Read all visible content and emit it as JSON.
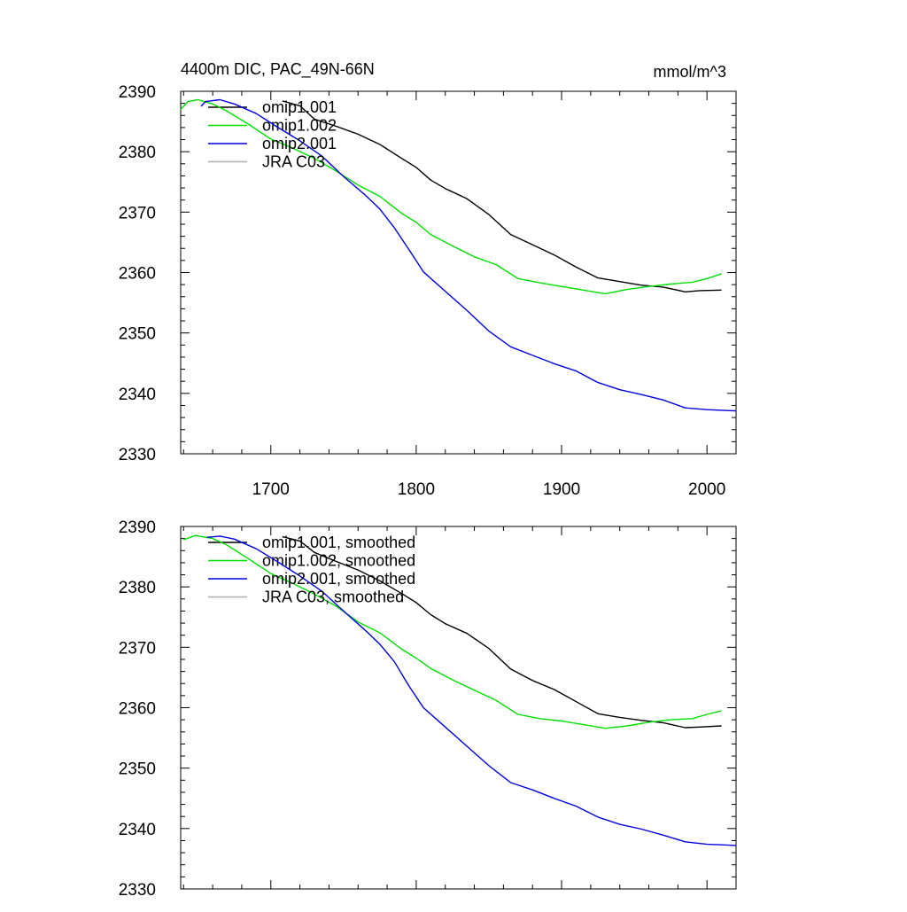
{
  "figure": {
    "title_left": "4400m DIC, PAC_49N-66N",
    "title_right": "mmol/m^3"
  },
  "chart_data": [
    {
      "type": "line",
      "xlim": [
        1638,
        2020
      ],
      "ylim": [
        2330,
        2390
      ],
      "x_ticks": [
        1700,
        1800,
        1900,
        2000
      ],
      "x_tick_labels": [
        "1700",
        "1800",
        "1900",
        "2000"
      ],
      "y_ticks": [
        2330,
        2340,
        2350,
        2360,
        2370,
        2380,
        2390
      ],
      "y_tick_labels": [
        "2330",
        "2340",
        "2350",
        "2360",
        "2370",
        "2380",
        "2390"
      ],
      "legend_position": "top-left",
      "series": [
        {
          "name": "omip1.001",
          "color": "#000000",
          "points": [
            [
              1708,
              2388.4
            ],
            [
              1720,
              2387.6
            ],
            [
              1730,
              2385.4
            ],
            [
              1745,
              2384.2
            ],
            [
              1760,
              2382.9
            ],
            [
              1775,
              2381.2
            ],
            [
              1790,
              2378.9
            ],
            [
              1800,
              2377.4
            ],
            [
              1810,
              2375.3
            ],
            [
              1820,
              2373.9
            ],
            [
              1835,
              2372.2
            ],
            [
              1850,
              2369.6
            ],
            [
              1865,
              2366.3
            ],
            [
              1880,
              2364.6
            ],
            [
              1895,
              2362.9
            ],
            [
              1910,
              2360.9
            ],
            [
              1925,
              2359.1
            ],
            [
              1940,
              2358.5
            ],
            [
              1955,
              2357.9
            ],
            [
              1970,
              2357.6
            ],
            [
              1985,
              2356.8
            ],
            [
              1995,
              2357.0
            ],
            [
              2010,
              2357.1
            ]
          ]
        },
        {
          "name": "omip1.002",
          "color": "#00e000",
          "points": [
            [
              1638,
              2387.0
            ],
            [
              1643,
              2388.3
            ],
            [
              1650,
              2388.6
            ],
            [
              1660,
              2387.9
            ],
            [
              1670,
              2386.7
            ],
            [
              1685,
              2384.5
            ],
            [
              1700,
              2382.1
            ],
            [
              1715,
              2380.6
            ],
            [
              1730,
              2378.9
            ],
            [
              1745,
              2376.8
            ],
            [
              1760,
              2374.5
            ],
            [
              1775,
              2372.6
            ],
            [
              1790,
              2369.8
            ],
            [
              1800,
              2368.3
            ],
            [
              1810,
              2366.3
            ],
            [
              1825,
              2364.4
            ],
            [
              1840,
              2362.6
            ],
            [
              1855,
              2361.3
            ],
            [
              1870,
              2359.0
            ],
            [
              1885,
              2358.3
            ],
            [
              1900,
              2357.7
            ],
            [
              1915,
              2357.1
            ],
            [
              1930,
              2356.5
            ],
            [
              1945,
              2357.2
            ],
            [
              1960,
              2357.7
            ],
            [
              1975,
              2358.1
            ],
            [
              1990,
              2358.4
            ],
            [
              2000,
              2359.0
            ],
            [
              2010,
              2359.8
            ]
          ]
        },
        {
          "name": "omip2.001",
          "color": "#0000e0",
          "points": [
            [
              1652,
              2387.5
            ],
            [
              1655,
              2388.3
            ],
            [
              1665,
              2388.6
            ],
            [
              1675,
              2387.9
            ],
            [
              1690,
              2386.3
            ],
            [
              1705,
              2384.0
            ],
            [
              1720,
              2381.8
            ],
            [
              1735,
              2379.3
            ],
            [
              1750,
              2375.9
            ],
            [
              1765,
              2372.8
            ],
            [
              1775,
              2370.5
            ],
            [
              1785,
              2367.4
            ],
            [
              1795,
              2363.8
            ],
            [
              1805,
              2360.1
            ],
            [
              1820,
              2356.9
            ],
            [
              1835,
              2353.7
            ],
            [
              1850,
              2350.3
            ],
            [
              1865,
              2347.7
            ],
            [
              1880,
              2346.3
            ],
            [
              1895,
              2344.9
            ],
            [
              1910,
              2343.7
            ],
            [
              1925,
              2341.8
            ],
            [
              1940,
              2340.6
            ],
            [
              1955,
              2339.8
            ],
            [
              1970,
              2338.9
            ],
            [
              1985,
              2337.6
            ],
            [
              2000,
              2337.3
            ],
            [
              2010,
              2337.2
            ],
            [
              2020,
              2337.1
            ]
          ]
        },
        {
          "name": "JRA C03",
          "color": "#b0b0b0",
          "points": []
        }
      ]
    },
    {
      "type": "line",
      "xlim": [
        1638,
        2020
      ],
      "ylim": [
        2330,
        2390
      ],
      "x_ticks": [
        1700,
        1800,
        1900,
        2000
      ],
      "x_tick_labels": [],
      "y_ticks": [
        2330,
        2340,
        2350,
        2360,
        2370,
        2380,
        2390
      ],
      "y_tick_labels": [
        "2330",
        "2340",
        "2350",
        "2360",
        "2370",
        "2380",
        "2390"
      ],
      "legend_position": "top-left",
      "series": [
        {
          "name": "omip1.001, smoothed",
          "color": "#000000",
          "points": [
            [
              1708,
              2388.3
            ],
            [
              1720,
              2387.6
            ],
            [
              1730,
              2385.7
            ],
            [
              1745,
              2384.2
            ],
            [
              1760,
              2382.8
            ],
            [
              1775,
              2381.0
            ],
            [
              1790,
              2378.9
            ],
            [
              1800,
              2377.4
            ],
            [
              1810,
              2375.4
            ],
            [
              1820,
              2373.9
            ],
            [
              1835,
              2372.3
            ],
            [
              1850,
              2369.8
            ],
            [
              1865,
              2366.4
            ],
            [
              1880,
              2364.5
            ],
            [
              1895,
              2363.0
            ],
            [
              1910,
              2361.0
            ],
            [
              1925,
              2359.0
            ],
            [
              1940,
              2358.4
            ],
            [
              1955,
              2357.9
            ],
            [
              1970,
              2357.5
            ],
            [
              1985,
              2356.7
            ],
            [
              1995,
              2356.8
            ],
            [
              2010,
              2357.0
            ]
          ]
        },
        {
          "name": "omip1.002, smoothed",
          "color": "#00e000",
          "points": [
            [
              1640,
              2387.8
            ],
            [
              1648,
              2388.5
            ],
            [
              1660,
              2388.0
            ],
            [
              1670,
              2386.9
            ],
            [
              1685,
              2384.6
            ],
            [
              1700,
              2382.2
            ],
            [
              1715,
              2380.6
            ],
            [
              1730,
              2378.8
            ],
            [
              1745,
              2376.8
            ],
            [
              1760,
              2374.2
            ],
            [
              1775,
              2372.4
            ],
            [
              1790,
              2369.7
            ],
            [
              1800,
              2368.2
            ],
            [
              1810,
              2366.5
            ],
            [
              1825,
              2364.6
            ],
            [
              1840,
              2362.9
            ],
            [
              1855,
              2361.2
            ],
            [
              1870,
              2358.9
            ],
            [
              1885,
              2358.2
            ],
            [
              1900,
              2357.8
            ],
            [
              1915,
              2357.2
            ],
            [
              1930,
              2356.6
            ],
            [
              1945,
              2357.0
            ],
            [
              1960,
              2357.6
            ],
            [
              1975,
              2358.0
            ],
            [
              1990,
              2358.2
            ],
            [
              2000,
              2358.9
            ],
            [
              2010,
              2359.5
            ]
          ]
        },
        {
          "name": "omip2.001, smoothed",
          "color": "#0000e0",
          "points": [
            [
              1656,
              2388.2
            ],
            [
              1665,
              2388.4
            ],
            [
              1675,
              2387.9
            ],
            [
              1690,
              2386.3
            ],
            [
              1705,
              2384.1
            ],
            [
              1720,
              2381.8
            ],
            [
              1735,
              2379.3
            ],
            [
              1750,
              2376.0
            ],
            [
              1765,
              2372.8
            ],
            [
              1775,
              2370.5
            ],
            [
              1785,
              2367.6
            ],
            [
              1795,
              2363.6
            ],
            [
              1805,
              2360.0
            ],
            [
              1820,
              2356.8
            ],
            [
              1835,
              2353.6
            ],
            [
              1850,
              2350.4
            ],
            [
              1865,
              2347.6
            ],
            [
              1880,
              2346.4
            ],
            [
              1895,
              2345.0
            ],
            [
              1910,
              2343.7
            ],
            [
              1925,
              2341.9
            ],
            [
              1940,
              2340.7
            ],
            [
              1955,
              2339.9
            ],
            [
              1970,
              2338.9
            ],
            [
              1985,
              2337.8
            ],
            [
              2000,
              2337.4
            ],
            [
              2010,
              2337.3
            ],
            [
              2020,
              2337.2
            ]
          ]
        },
        {
          "name": "JRA C03, smoothed",
          "color": "#b0b0b0",
          "points": []
        }
      ]
    }
  ]
}
